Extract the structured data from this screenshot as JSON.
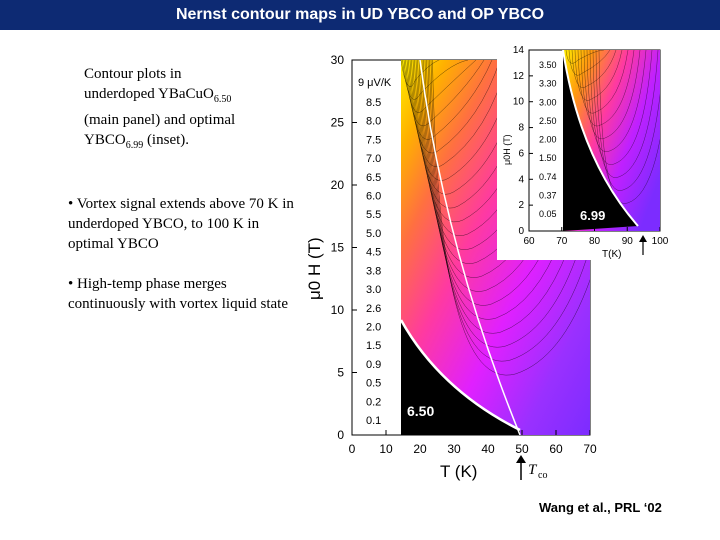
{
  "slide": {
    "title": "Nernst contour maps in UD YBCO and OP YBCO",
    "caption": {
      "line1": "Contour plots in",
      "line2_pre": "underdoped YBaCuO",
      "line2_sub": "6.50",
      "line3": "(main panel) and optimal",
      "line4_pre": "YBCO",
      "line4_sub": "6.99",
      "line4_post": " (inset)."
    },
    "bullets": [
      "•  Vortex signal extends above 70 K in underdoped YBCO, to 100 K in optimal YBCO",
      "•  High-temp phase merges continuously with vortex liquid state"
    ],
    "citation": "Wang et al., PRL ‘02"
  },
  "chart_data": [
    {
      "type": "heatmap",
      "panel": "main",
      "sample_label": "6.50",
      "xlabel": "T (K)",
      "ylabel": "μ0 H (T)",
      "xlim": [
        0,
        70
      ],
      "ylim": [
        0,
        30
      ],
      "x_ticks": [
        0,
        10,
        20,
        30,
        40,
        50,
        60,
        70
      ],
      "y_ticks": [
        0,
        5,
        10,
        15,
        20,
        25,
        30
      ],
      "legend_title": "9 μV/K",
      "contour_levels_uV_per_K": [
        "8.5",
        "8.0",
        "7.5",
        "7.0",
        "6.5",
        "6.0",
        "5.5",
        "5.0",
        "4.5",
        "3.8",
        "3.0",
        "2.6",
        "2.0",
        "1.5",
        "0.9",
        "0.5",
        "0.2",
        "0.1"
      ],
      "tc_marker": {
        "x": 50,
        "label": "T",
        "label_sub": "co"
      },
      "colors": {
        "high": "#ffee00",
        "mid": "#ff2fa0",
        "low": "#7c2cff",
        "superconducting": "#000000"
      }
    },
    {
      "type": "heatmap",
      "panel": "inset",
      "sample_label": "6.99",
      "xlabel": "T(K)",
      "ylabel": "μ0H (T)",
      "xlim": [
        60,
        100
      ],
      "ylim": [
        0,
        14
      ],
      "x_ticks": [
        60,
        70,
        80,
        90,
        100
      ],
      "y_ticks": [
        0,
        2,
        4,
        6,
        8,
        10,
        12,
        14
      ],
      "contour_levels_uV_per_K": [
        "3.50",
        "3.30",
        "3.00",
        "2.50",
        "2.00",
        "1.50",
        "0.74",
        "0.37",
        "0.05"
      ],
      "tc_marker": {
        "x": 93
      }
    }
  ]
}
